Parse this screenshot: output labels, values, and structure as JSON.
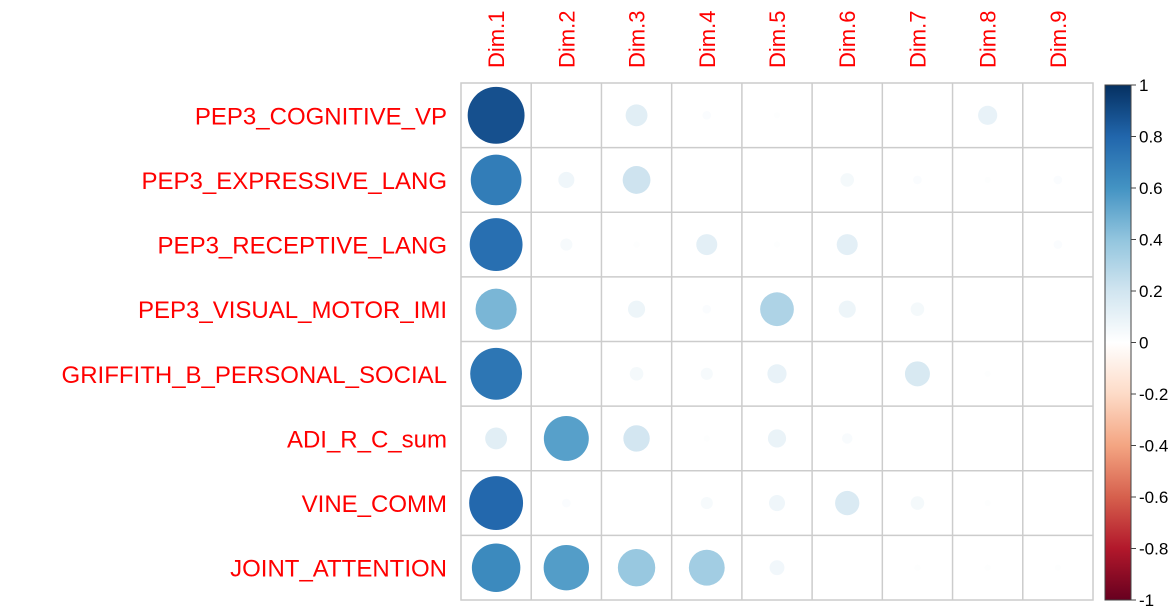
{
  "chart_data": {
    "type": "heatmap",
    "title": "",
    "columns": [
      "Dim.1",
      "Dim.2",
      "Dim.3",
      "Dim.4",
      "Dim.5",
      "Dim.6",
      "Dim.7",
      "Dim.8",
      "Dim.9"
    ],
    "rows": [
      "PEP3_COGNITIVE_VP",
      "PEP3_EXPRESSIVE_LANG",
      "PEP3_RECEPTIVE_LANG",
      "PEP3_VISUAL_MOTOR_IMI",
      "GRIFFITH_B_PERSONAL_SOCIAL",
      "ADI_R_C_sum",
      "VINE_COMM",
      "JOINT_ATTENTION"
    ],
    "values": [
      [
        0.88,
        0.0,
        0.13,
        0.02,
        0.01,
        0.0,
        0.0,
        0.1,
        0.0
      ],
      [
        0.7,
        0.07,
        0.21,
        0.0,
        0.0,
        0.05,
        0.02,
        0.01,
        0.02
      ],
      [
        0.76,
        0.04,
        0.01,
        0.12,
        0.01,
        0.12,
        0.0,
        0.0,
        0.02
      ],
      [
        0.46,
        0.0,
        0.08,
        0.02,
        0.31,
        0.08,
        0.05,
        0.0,
        0.0
      ],
      [
        0.73,
        0.0,
        0.05,
        0.04,
        0.1,
        0.0,
        0.17,
        0.01,
        0.0
      ],
      [
        0.13,
        0.55,
        0.19,
        0.01,
        0.09,
        0.03,
        0.0,
        0.0,
        0.0
      ],
      [
        0.79,
        0.02,
        0.0,
        0.04,
        0.07,
        0.16,
        0.05,
        0.01,
        0.0
      ],
      [
        0.64,
        0.56,
        0.38,
        0.35,
        0.06,
        0.0,
        0.01,
        0.01,
        0.01
      ]
    ],
    "color_scale": {
      "min": -1,
      "max": 1,
      "ticks": [
        "1",
        "0.8",
        "0.6",
        "0.4",
        "0.2",
        "0",
        "-0.2",
        "-0.4",
        "-0.6",
        "-0.8",
        "-1"
      ],
      "stops": [
        "#67001F",
        "#B2182B",
        "#D6604D",
        "#F4A582",
        "#FDDBC7",
        "#FFFFFF",
        "#D1E5F0",
        "#92C5DE",
        "#4393C3",
        "#2166AC",
        "#053061"
      ]
    },
    "label_color": "#FF0000",
    "grid_color": "#CCCCCC",
    "grid": true,
    "legend_position": "right"
  }
}
